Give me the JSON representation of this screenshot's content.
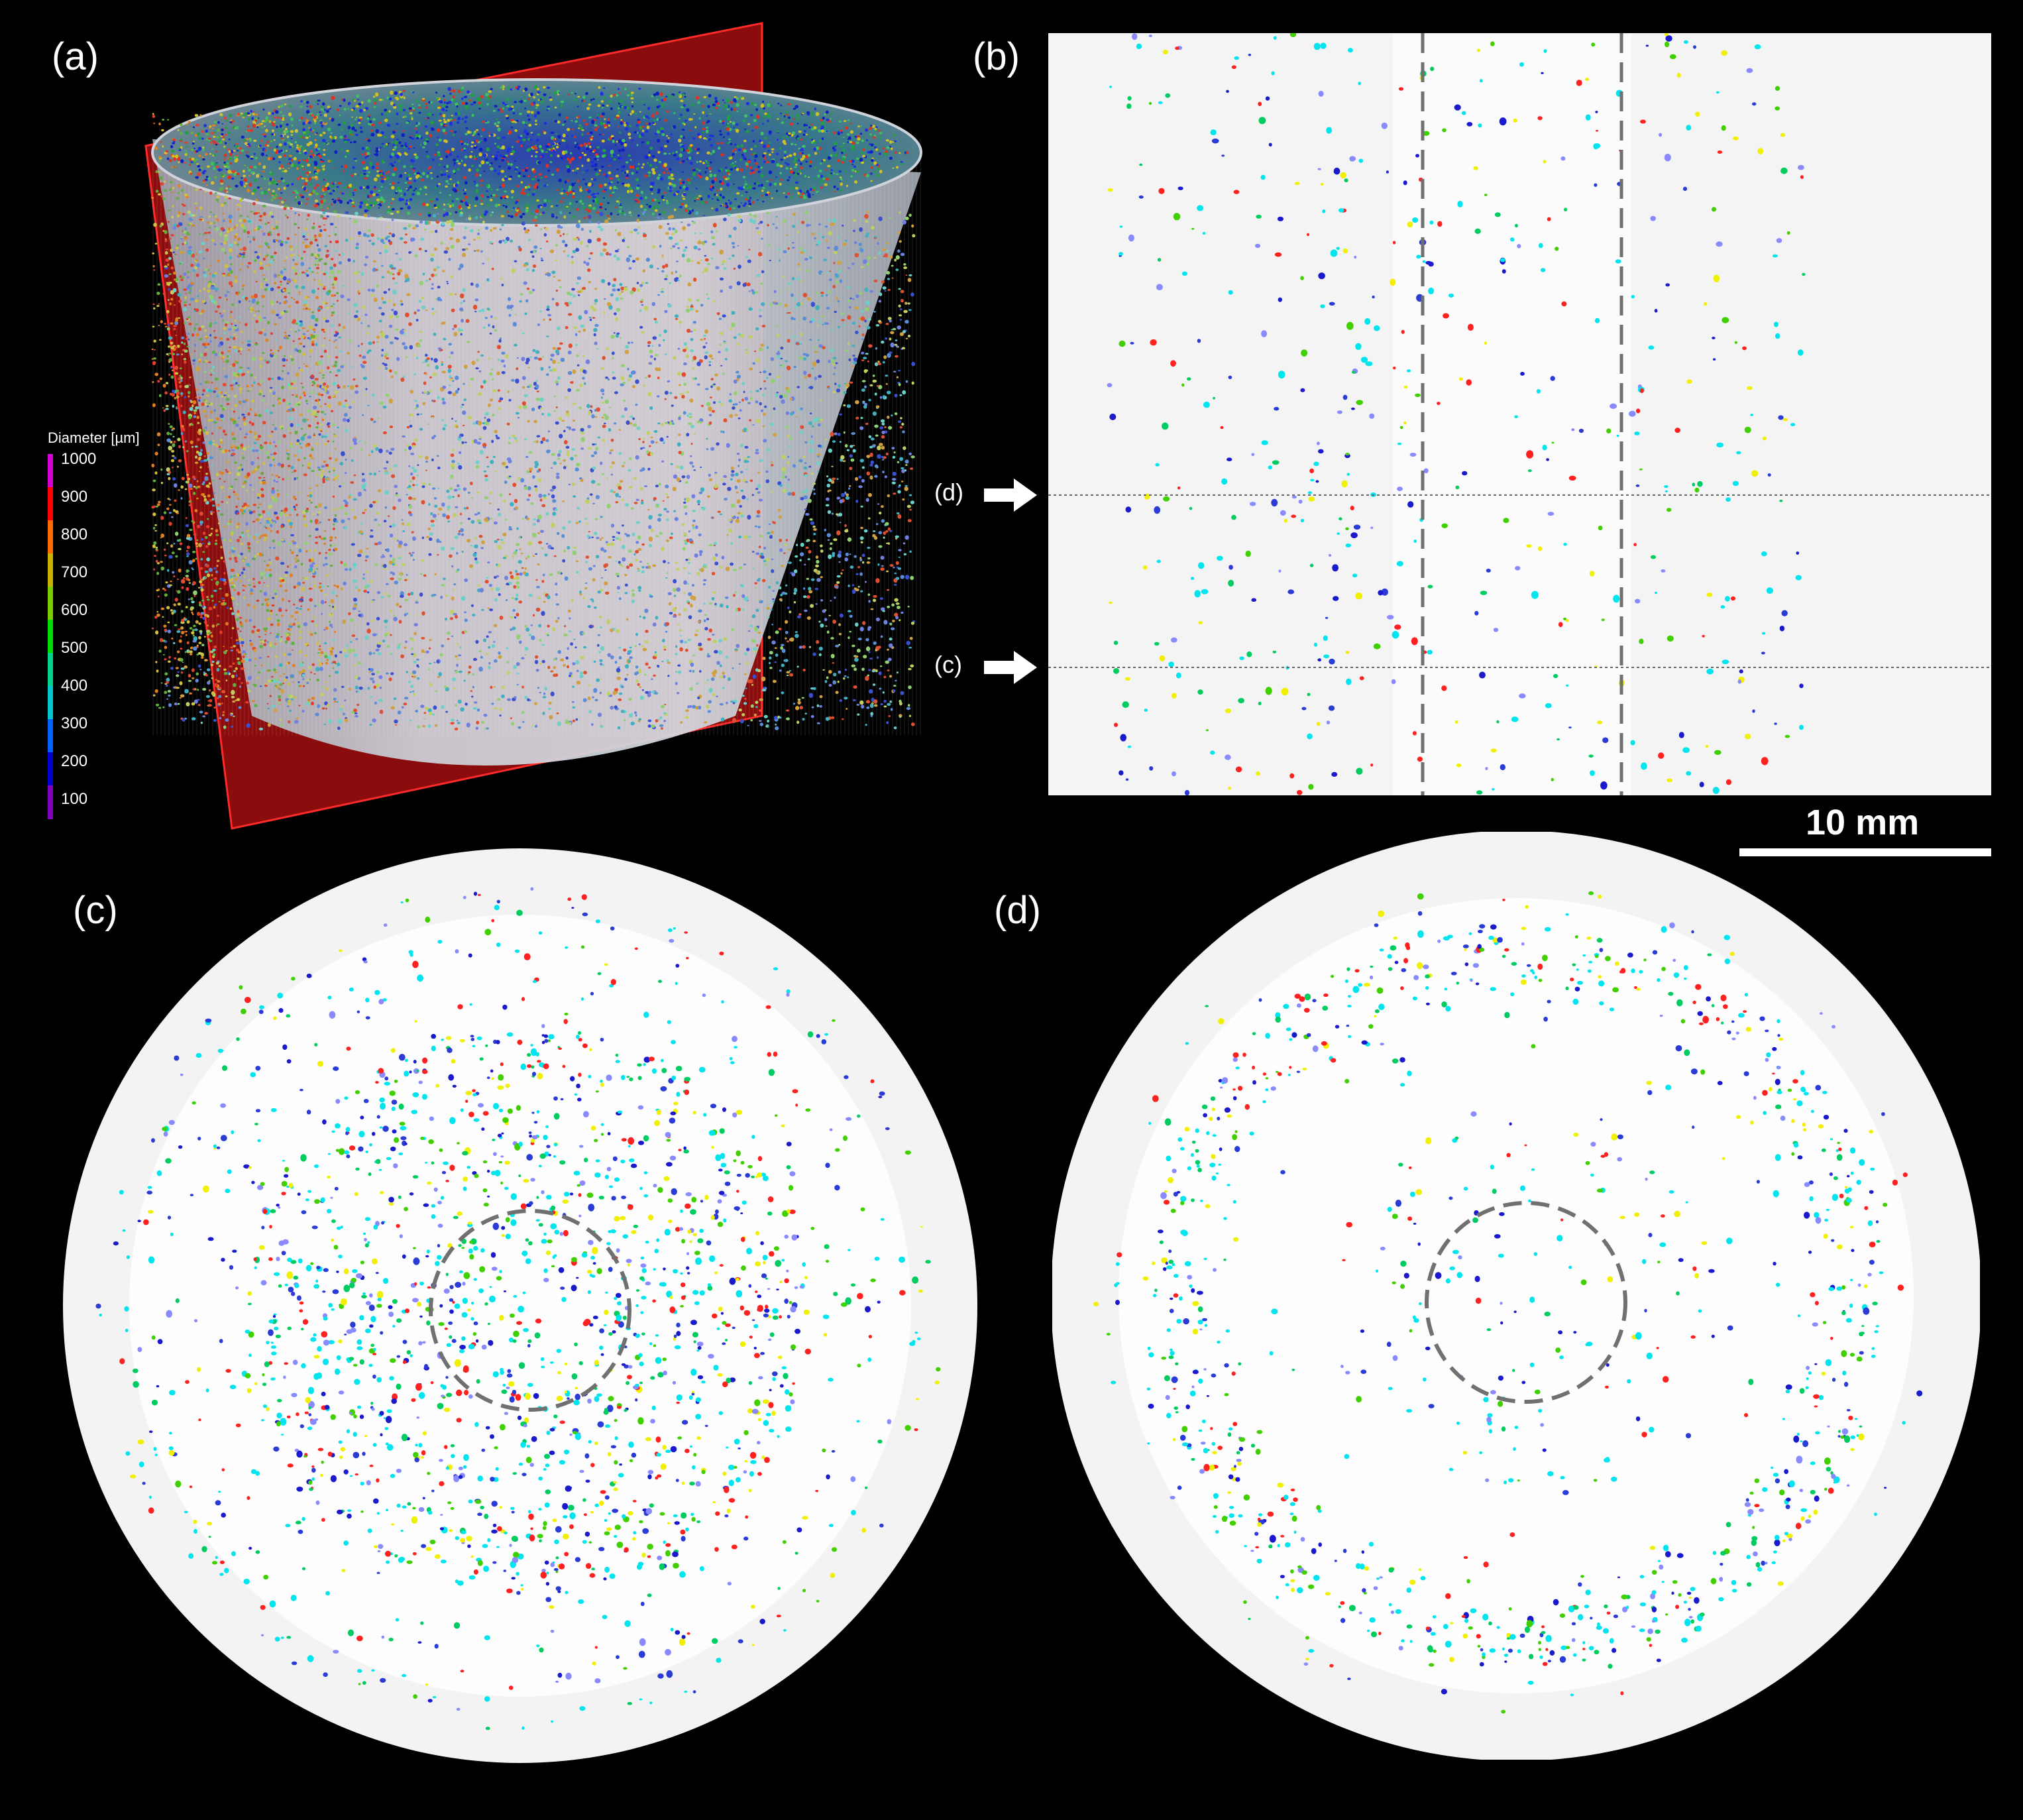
{
  "panels": {
    "a": {
      "label": "(a)"
    },
    "b": {
      "label": "(b)",
      "marker_d": "(d)",
      "marker_c": "(c)"
    },
    "c": {
      "label": "(c)"
    },
    "d": {
      "label": "(d)"
    }
  },
  "colorbar": {
    "title": "Diameter [µm]",
    "ticks": [
      "1000",
      "900",
      "800",
      "700",
      "600",
      "500",
      "400",
      "300",
      "200",
      "100"
    ],
    "colors": [
      "#d400d4",
      "#ff0000",
      "#ff6a00",
      "#c8b400",
      "#7acc00",
      "#00dd00",
      "#00d48a",
      "#00c8c8",
      "#0060ff",
      "#0000cc",
      "#8000c0"
    ]
  },
  "scalebar": {
    "label": "10 mm"
  },
  "particle_colors": [
    "#00e5ee",
    "#00e5ee",
    "#00e5ee",
    "#1a1acc",
    "#2a3bd6",
    "#f0f000",
    "#40d000",
    "#00cc60",
    "#ff2020",
    "#8a8aff"
  ],
  "colors": {
    "background": "#000000",
    "slab_red": "#a01010",
    "cylinder_face": "#c8ccd4",
    "dashed": "#707070"
  }
}
